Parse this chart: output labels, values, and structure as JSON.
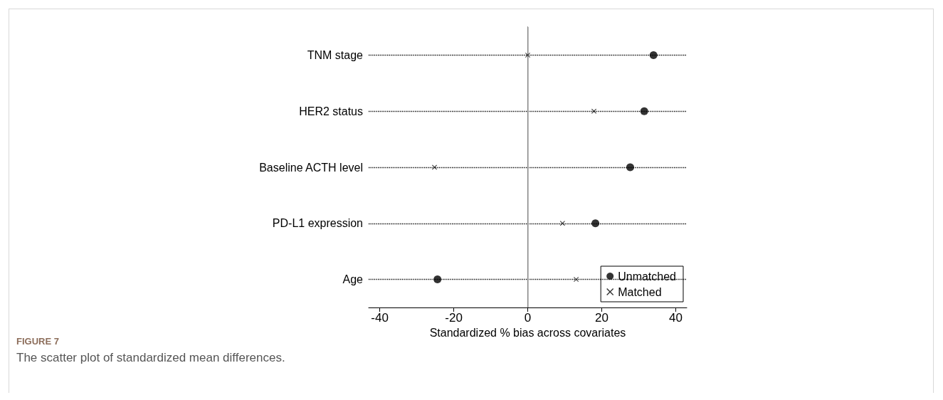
{
  "chart_data": {
    "type": "scatter",
    "orientation": "horizontal",
    "title": "FIGURE 7",
    "subtitle": "The scatter plot of standardized mean differences.",
    "xlabel": "Standardized % bias across covariates",
    "categories": [
      "TNM stage",
      "HER2 status",
      "Baseline ACTH level",
      "PD-L1 expression",
      "Age"
    ],
    "series": [
      {
        "name": "Unmatched",
        "color": "#000000",
        "marker": "circle",
        "values": [
          34.0,
          31.5,
          27.7,
          18.3,
          -24.4
        ]
      },
      {
        "name": "Matched",
        "color": "#000000",
        "marker": "cross",
        "values": [
          0,
          17.9,
          -25.2,
          9.4,
          13.1
        ]
      }
    ],
    "xlim": [
      -43,
      43
    ],
    "xticks": [
      -40,
      -20,
      0,
      20,
      40
    ],
    "grid": "y",
    "line_style": "dotted",
    "legend": "bottom right",
    "ref_lines": [
      {
        "axis": "x",
        "value": 0,
        "color": "#b0b0b0"
      }
    ]
  }
}
